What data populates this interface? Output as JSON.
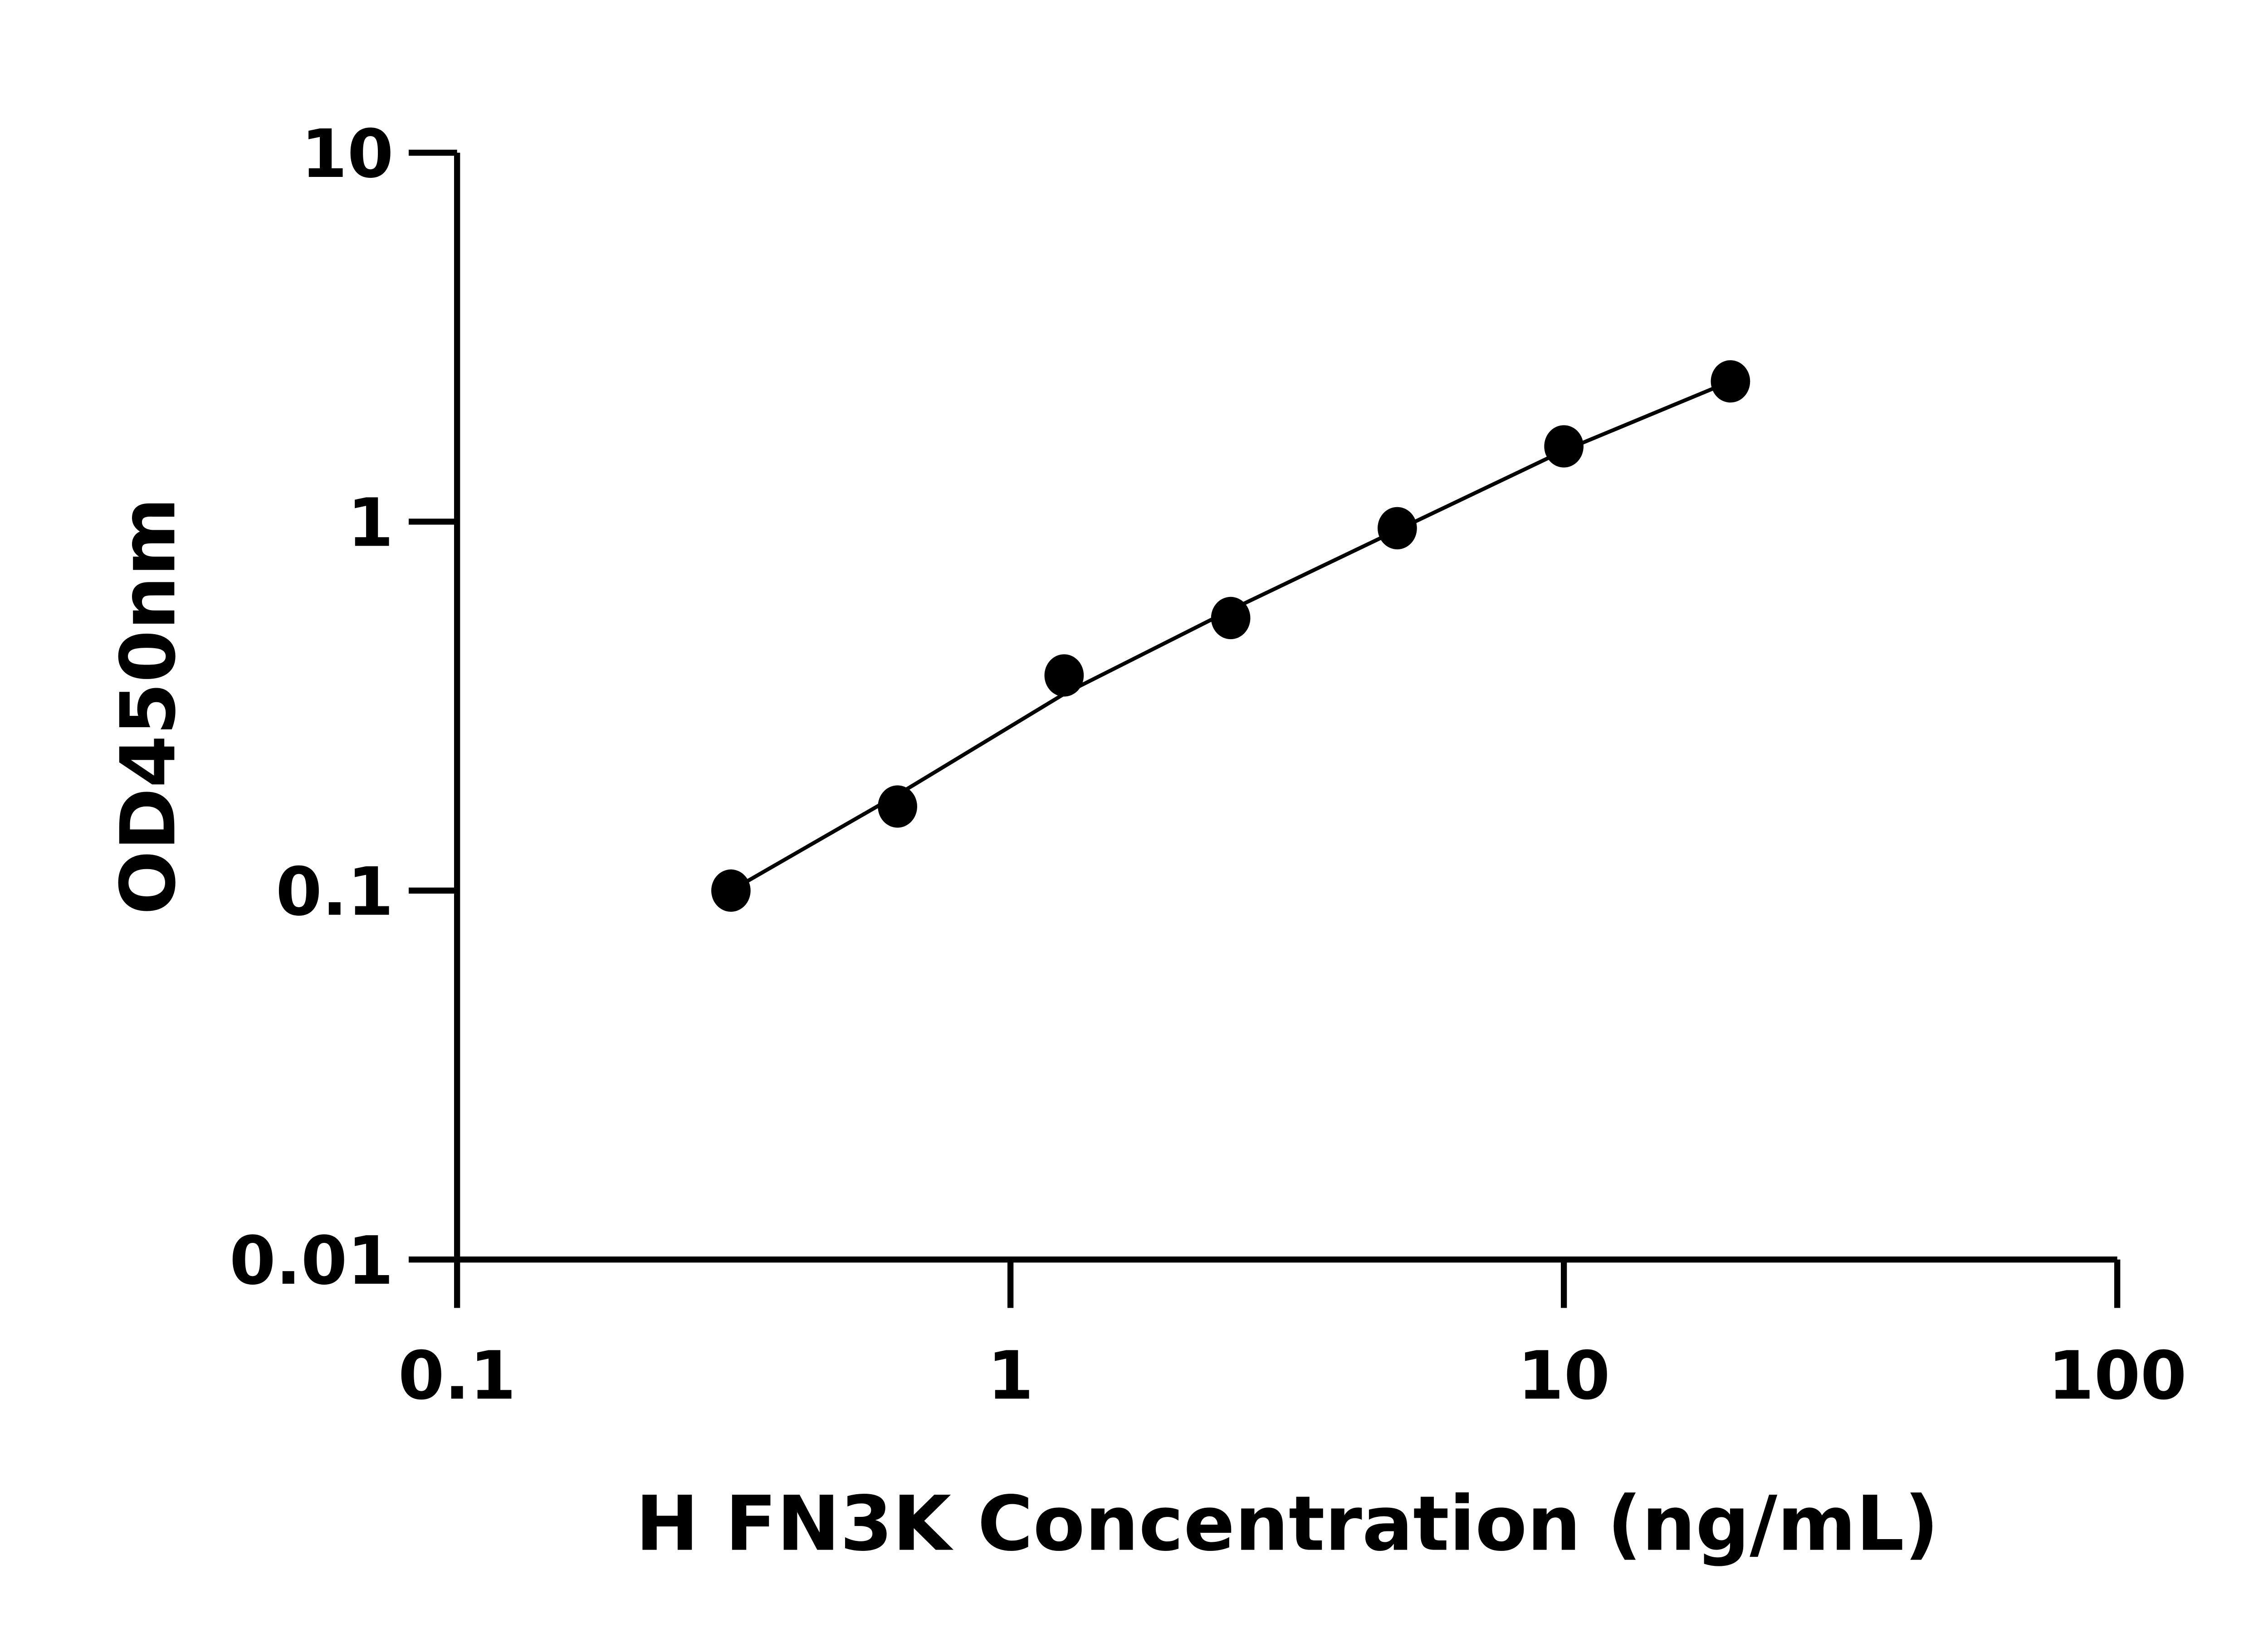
{
  "chart_data": {
    "type": "scatter",
    "title": "",
    "xlabel": "H FN3K Concentration (ng/mL)",
    "ylabel": "OD450nm",
    "xscale": "log",
    "yscale": "log",
    "xlim": [
      0.1,
      100
    ],
    "ylim": [
      0.01,
      10
    ],
    "xticks": [
      "0.1",
      "1",
      "10",
      "100"
    ],
    "yticks": [
      "0.01",
      "0.1",
      "1",
      "10"
    ],
    "grid": false,
    "fit_line": true,
    "colors": {
      "points": "#000000",
      "line": "#000000",
      "axes": "#000000"
    },
    "series": [
      {
        "x": [
          0.3125,
          0.625,
          1.25,
          2.5,
          5,
          10,
          20
        ],
        "y": [
          0.1,
          0.169,
          0.383,
          0.548,
          0.96,
          1.6,
          2.4
        ]
      }
    ]
  }
}
